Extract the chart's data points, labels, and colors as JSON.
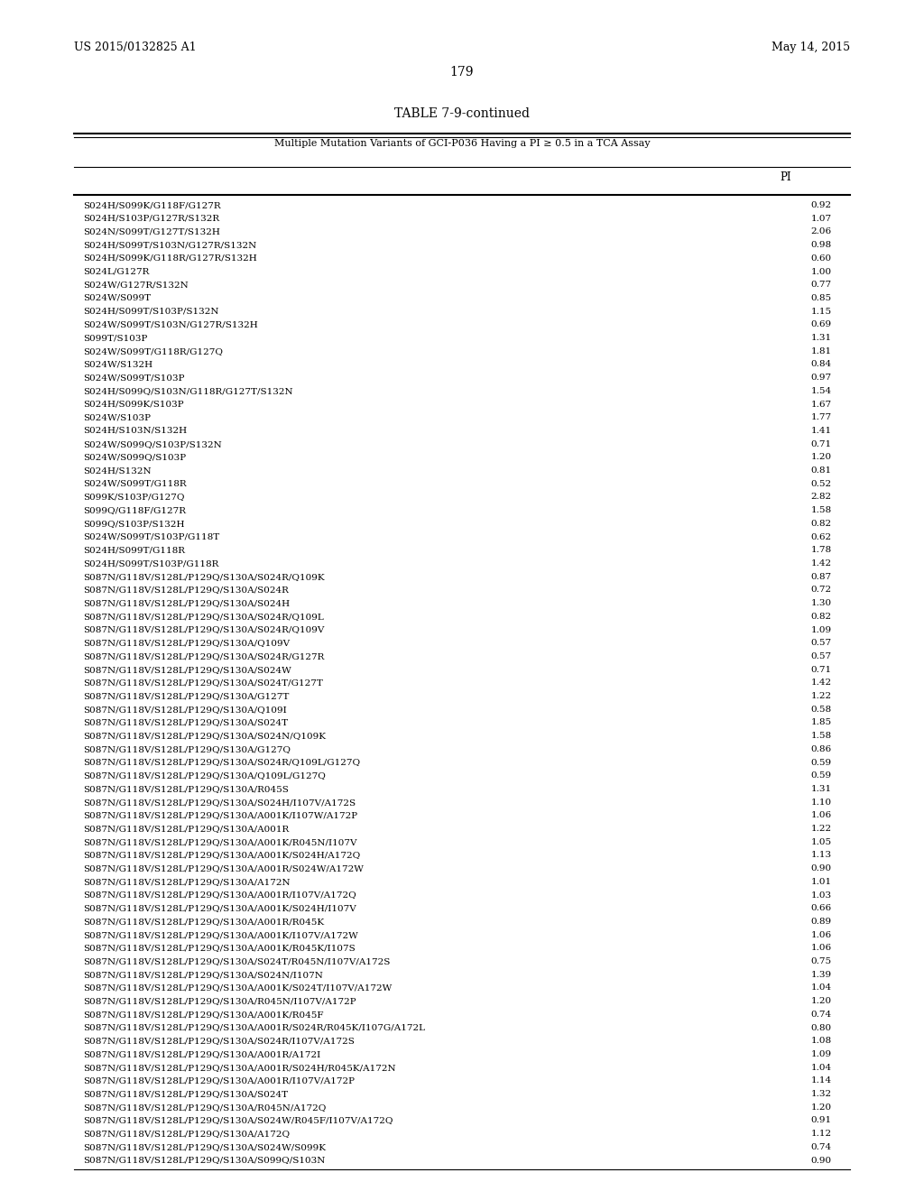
{
  "header_left": "US 2015/0132825 A1",
  "header_right": "May 14, 2015",
  "page_number": "179",
  "table_title": "TABLE 7-9-continued",
  "table_subtitle": "Multiple Mutation Variants of GCI-P036 Having a PI ≥ 0.5 in a TCA Assay",
  "col_header": "PI",
  "rows": [
    [
      "S024H/S099K/G118F/G127R",
      "0.92"
    ],
    [
      "S024H/S103P/G127R/S132R",
      "1.07"
    ],
    [
      "S024N/S099T/G127T/S132H",
      "2.06"
    ],
    [
      "S024H/S099T/S103N/G127R/S132N",
      "0.98"
    ],
    [
      "S024H/S099K/G118R/G127R/S132H",
      "0.60"
    ],
    [
      "S024L/G127R",
      "1.00"
    ],
    [
      "S024W/G127R/S132N",
      "0.77"
    ],
    [
      "S024W/S099T",
      "0.85"
    ],
    [
      "S024H/S099T/S103P/S132N",
      "1.15"
    ],
    [
      "S024W/S099T/S103N/G127R/S132H",
      "0.69"
    ],
    [
      "S099T/S103P",
      "1.31"
    ],
    [
      "S024W/S099T/G118R/G127Q",
      "1.81"
    ],
    [
      "S024W/S132H",
      "0.84"
    ],
    [
      "S024W/S099T/S103P",
      "0.97"
    ],
    [
      "S024H/S099Q/S103N/G118R/G127T/S132N",
      "1.54"
    ],
    [
      "S024H/S099K/S103P",
      "1.67"
    ],
    [
      "S024W/S103P",
      "1.77"
    ],
    [
      "S024H/S103N/S132H",
      "1.41"
    ],
    [
      "S024W/S099Q/S103P/S132N",
      "0.71"
    ],
    [
      "S024W/S099Q/S103P",
      "1.20"
    ],
    [
      "S024H/S132N",
      "0.81"
    ],
    [
      "S024W/S099T/G118R",
      "0.52"
    ],
    [
      "S099K/S103P/G127Q",
      "2.82"
    ],
    [
      "S099Q/G118F/G127R",
      "1.58"
    ],
    [
      "S099Q/S103P/S132H",
      "0.82"
    ],
    [
      "S024W/S099T/S103P/G118T",
      "0.62"
    ],
    [
      "S024H/S099T/G118R",
      "1.78"
    ],
    [
      "S024H/S099T/S103P/G118R",
      "1.42"
    ],
    [
      "S087N/G118V/S128L/P129Q/S130A/S024R/Q109K",
      "0.87"
    ],
    [
      "S087N/G118V/S128L/P129Q/S130A/S024R",
      "0.72"
    ],
    [
      "S087N/G118V/S128L/P129Q/S130A/S024H",
      "1.30"
    ],
    [
      "S087N/G118V/S128L/P129Q/S130A/S024R/Q109L",
      "0.82"
    ],
    [
      "S087N/G118V/S128L/P129Q/S130A/S024R/Q109V",
      "1.09"
    ],
    [
      "S087N/G118V/S128L/P129Q/S130A/Q109V",
      "0.57"
    ],
    [
      "S087N/G118V/S128L/P129Q/S130A/S024R/G127R",
      "0.57"
    ],
    [
      "S087N/G118V/S128L/P129Q/S130A/S024W",
      "0.71"
    ],
    [
      "S087N/G118V/S128L/P129Q/S130A/S024T/G127T",
      "1.42"
    ],
    [
      "S087N/G118V/S128L/P129Q/S130A/G127T",
      "1.22"
    ],
    [
      "S087N/G118V/S128L/P129Q/S130A/Q109I",
      "0.58"
    ],
    [
      "S087N/G118V/S128L/P129Q/S130A/S024T",
      "1.85"
    ],
    [
      "S087N/G118V/S128L/P129Q/S130A/S024N/Q109K",
      "1.58"
    ],
    [
      "S087N/G118V/S128L/P129Q/S130A/G127Q",
      "0.86"
    ],
    [
      "S087N/G118V/S128L/P129Q/S130A/S024R/Q109L/G127Q",
      "0.59"
    ],
    [
      "S087N/G118V/S128L/P129Q/S130A/Q109L/G127Q",
      "0.59"
    ],
    [
      "S087N/G118V/S128L/P129Q/S130A/R045S",
      "1.31"
    ],
    [
      "S087N/G118V/S128L/P129Q/S130A/S024H/I107V/A172S",
      "1.10"
    ],
    [
      "S087N/G118V/S128L/P129Q/S130A/A001K/I107W/A172P",
      "1.06"
    ],
    [
      "S087N/G118V/S128L/P129Q/S130A/A001R",
      "1.22"
    ],
    [
      "S087N/G118V/S128L/P129Q/S130A/A001K/R045N/I107V",
      "1.05"
    ],
    [
      "S087N/G118V/S128L/P129Q/S130A/A001K/S024H/A172Q",
      "1.13"
    ],
    [
      "S087N/G118V/S128L/P129Q/S130A/A001R/S024W/A172W",
      "0.90"
    ],
    [
      "S087N/G118V/S128L/P129Q/S130A/A172N",
      "1.01"
    ],
    [
      "S087N/G118V/S128L/P129Q/S130A/A001R/I107V/A172Q",
      "1.03"
    ],
    [
      "S087N/G118V/S128L/P129Q/S130A/A001K/S024H/I107V",
      "0.66"
    ],
    [
      "S087N/G118V/S128L/P129Q/S130A/A001R/R045K",
      "0.89"
    ],
    [
      "S087N/G118V/S128L/P129Q/S130A/A001K/I107V/A172W",
      "1.06"
    ],
    [
      "S087N/G118V/S128L/P129Q/S130A/A001K/R045K/I107S",
      "1.06"
    ],
    [
      "S087N/G118V/S128L/P129Q/S130A/S024T/R045N/I107V/A172S",
      "0.75"
    ],
    [
      "S087N/G118V/S128L/P129Q/S130A/S024N/I107N",
      "1.39"
    ],
    [
      "S087N/G118V/S128L/P129Q/S130A/A001K/S024T/I107V/A172W",
      "1.04"
    ],
    [
      "S087N/G118V/S128L/P129Q/S130A/R045N/I107V/A172P",
      "1.20"
    ],
    [
      "S087N/G118V/S128L/P129Q/S130A/A001K/R045F",
      "0.74"
    ],
    [
      "S087N/G118V/S128L/P129Q/S130A/A001R/S024R/R045K/I107G/A172L",
      "0.80"
    ],
    [
      "S087N/G118V/S128L/P129Q/S130A/S024R/I107V/A172S",
      "1.08"
    ],
    [
      "S087N/G118V/S128L/P129Q/S130A/A001R/A172I",
      "1.09"
    ],
    [
      "S087N/G118V/S128L/P129Q/S130A/A001R/S024H/R045K/A172N",
      "1.04"
    ],
    [
      "S087N/G118V/S128L/P129Q/S130A/A001R/I107V/A172P",
      "1.14"
    ],
    [
      "S087N/G118V/S128L/P129Q/S130A/S024T",
      "1.32"
    ],
    [
      "S087N/G118V/S128L/P129Q/S130A/R045N/A172Q",
      "1.20"
    ],
    [
      "S087N/G118V/S128L/P129Q/S130A/S024W/R045F/I107V/A172Q",
      "0.91"
    ],
    [
      "S087N/G118V/S128L/P129Q/S130A/A172Q",
      "1.12"
    ],
    [
      "S087N/G118V/S128L/P129Q/S130A/S024W/S099K",
      "0.74"
    ],
    [
      "S087N/G118V/S128L/P129Q/S130A/S099Q/S103N",
      "0.90"
    ]
  ],
  "background_color": "#ffffff",
  "text_color": "#000000",
  "font_size_header": 9,
  "font_size_table": 7.5,
  "font_size_title": 10,
  "font_size_page": 10
}
